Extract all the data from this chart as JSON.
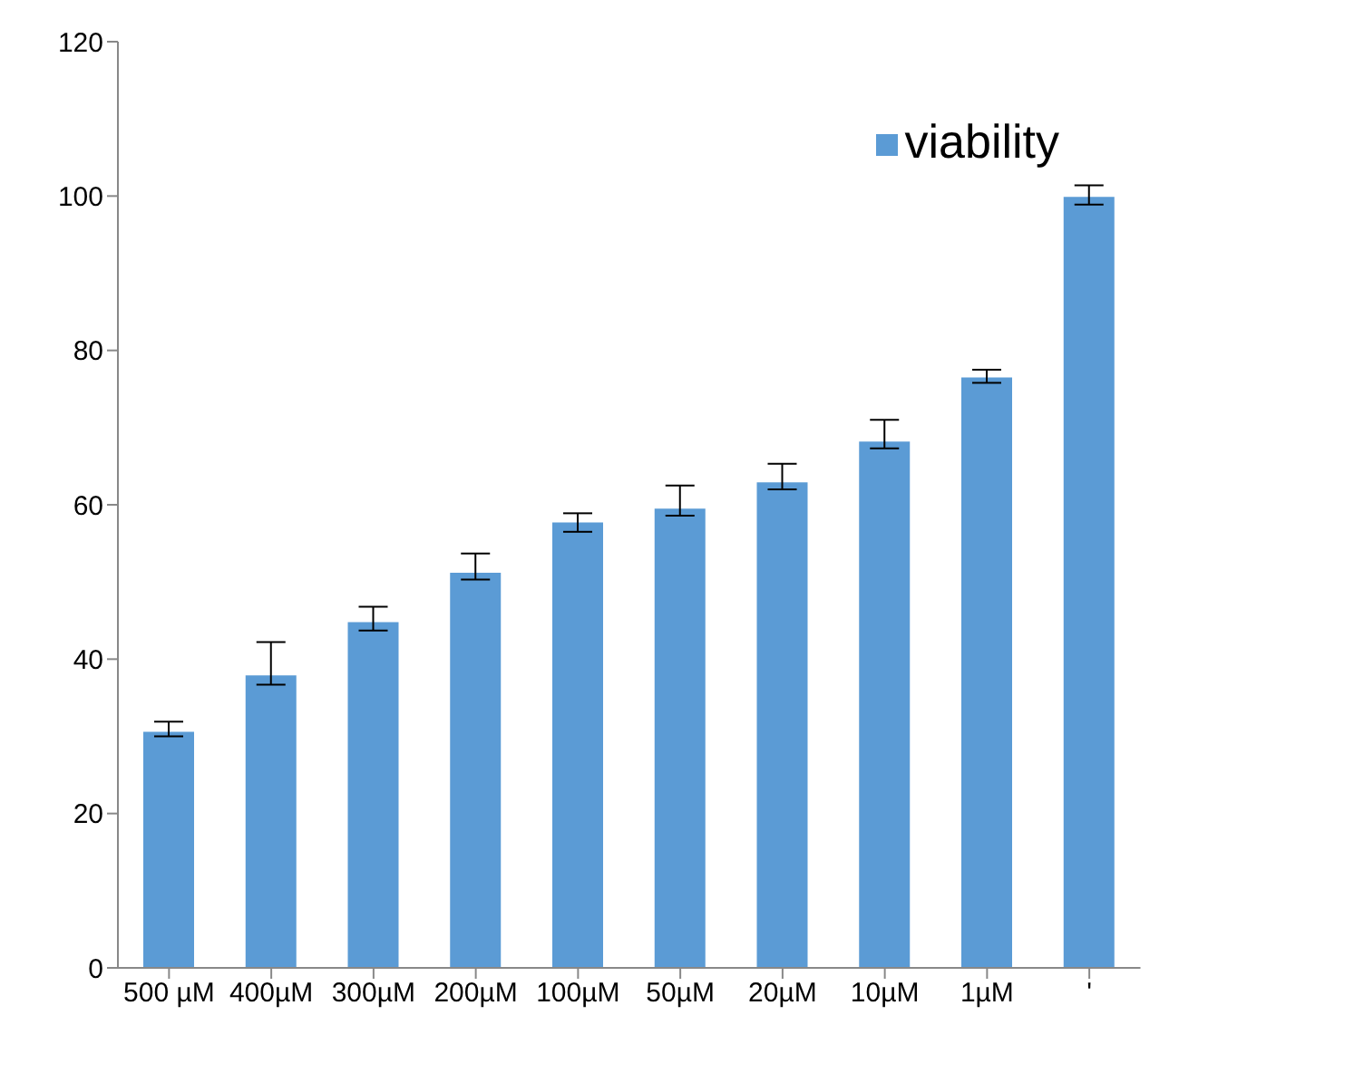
{
  "chart_data": {
    "type": "bar",
    "categories": [
      "500 µM",
      "400µM",
      "300µM",
      "200µM",
      "100µM",
      "50µM",
      "20µM",
      "10µM",
      "1µM",
      "'"
    ],
    "series": [
      {
        "name": "viability",
        "color": "#5b9bd5",
        "values": [
          30.6,
          37.9,
          44.8,
          51.2,
          57.7,
          59.5,
          62.9,
          68.2,
          76.5,
          99.9
        ],
        "errors": [
          [
            30.0,
            31.9
          ],
          [
            36.7,
            42.2
          ],
          [
            43.7,
            46.8
          ],
          [
            50.3,
            53.7
          ],
          [
            56.5,
            58.9
          ],
          [
            58.6,
            62.5
          ],
          [
            62.0,
            65.3
          ],
          [
            67.3,
            71.0
          ],
          [
            75.8,
            77.5
          ],
          [
            98.9,
            101.4
          ]
        ]
      }
    ],
    "ylim": [
      0,
      120
    ],
    "yticks": [
      0,
      20,
      40,
      60,
      80,
      100,
      120
    ],
    "legend": "top right"
  }
}
